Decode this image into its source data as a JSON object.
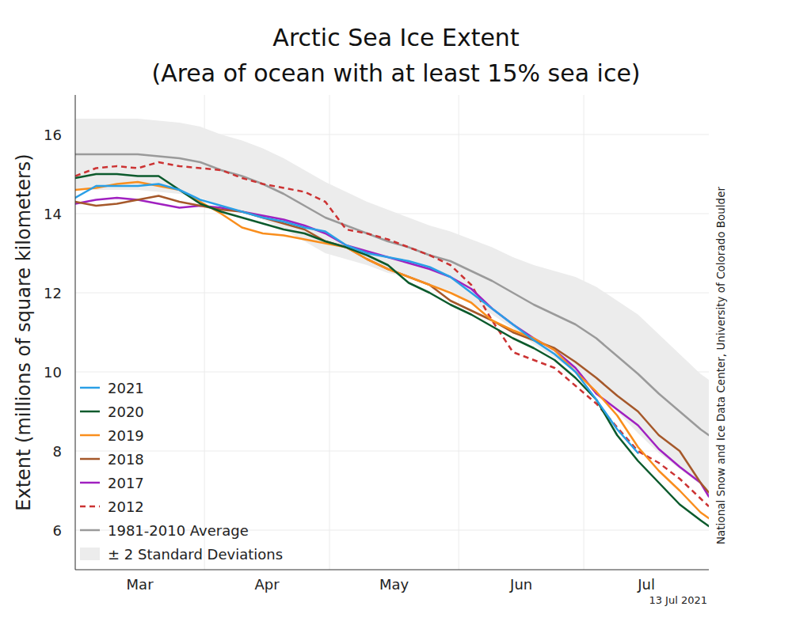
{
  "chart_data": {
    "type": "line",
    "title": "Arctic Sea Ice Extent",
    "subtitle": "(Area of ocean with at least 15% sea ice)",
    "y_label": "Extent (millions of square kilometers)",
    "source": "National Snow and Ice Data Center, University of Colorado Boulder",
    "note": "13 Jul 2021",
    "x": [
      0,
      5,
      10,
      15,
      20,
      25,
      30,
      35,
      40,
      45,
      50,
      55,
      60,
      65,
      70,
      75,
      80,
      85,
      90,
      95,
      100,
      105,
      110,
      115,
      120,
      125,
      130,
      135,
      140,
      145,
      150,
      152
    ],
    "xlim": [
      0,
      152
    ],
    "xticks": [
      {
        "value": 0,
        "label": "Mar"
      },
      {
        "value": 31,
        "label": "Apr"
      },
      {
        "value": 61,
        "label": "May"
      },
      {
        "value": 92,
        "label": "Jun"
      },
      {
        "value": 122,
        "label": "Jul"
      }
    ],
    "ylim": [
      5,
      17
    ],
    "yticks": [
      6,
      8,
      10,
      12,
      14,
      16
    ],
    "grid": true,
    "legend": "lower left",
    "series": [
      {
        "name": "2021",
        "color": "#2a9fe6",
        "line_style": "solid",
        "values": [
          14.4,
          14.7,
          14.7,
          14.7,
          14.75,
          14.6,
          14.35,
          14.2,
          14.05,
          13.9,
          13.8,
          13.65,
          13.55,
          13.2,
          13.0,
          12.9,
          12.8,
          12.65,
          12.4,
          12.0,
          11.6,
          11.2,
          10.8,
          10.45,
          10.0,
          9.3,
          8.55,
          7.95,
          null,
          null,
          null,
          null
        ]
      },
      {
        "name": "2020",
        "color": "#0b5a2c",
        "line_style": "solid",
        "values": [
          14.9,
          15.0,
          15.0,
          14.95,
          14.95,
          14.6,
          14.25,
          14.05,
          13.9,
          13.75,
          13.6,
          13.5,
          13.3,
          13.15,
          12.95,
          12.7,
          12.25,
          12.0,
          11.7,
          11.45,
          11.15,
          10.85,
          10.6,
          10.3,
          9.85,
          9.3,
          8.4,
          7.75,
          7.2,
          6.65,
          6.25,
          6.1
        ]
      },
      {
        "name": "2019",
        "color": "#f98e1d",
        "line_style": "solid",
        "values": [
          14.6,
          14.65,
          14.75,
          14.8,
          14.7,
          14.6,
          14.3,
          14.0,
          13.65,
          13.5,
          13.45,
          13.35,
          13.25,
          13.15,
          12.85,
          12.6,
          12.4,
          12.2,
          12.0,
          11.75,
          11.3,
          11.05,
          10.85,
          10.55,
          10.0,
          9.5,
          8.9,
          8.1,
          7.5,
          7.0,
          6.45,
          6.3
        ]
      },
      {
        "name": "2018",
        "color": "#a5582a",
        "line_style": "solid",
        "values": [
          14.3,
          14.2,
          14.25,
          14.35,
          14.45,
          14.3,
          14.2,
          14.1,
          14.05,
          13.9,
          13.75,
          13.6,
          13.3,
          13.15,
          12.85,
          12.6,
          12.4,
          12.2,
          11.8,
          11.55,
          11.3,
          11.0,
          10.8,
          10.6,
          10.25,
          9.85,
          9.4,
          9.0,
          8.4,
          8.0,
          7.2,
          6.95
        ]
      },
      {
        "name": "2017",
        "color": "#a020c0",
        "line_style": "solid",
        "values": [
          14.25,
          14.35,
          14.4,
          14.35,
          14.25,
          14.15,
          14.2,
          14.15,
          14.05,
          13.95,
          13.85,
          13.7,
          13.5,
          13.2,
          13.05,
          12.9,
          12.75,
          12.6,
          12.4,
          12.1,
          11.6,
          11.2,
          10.85,
          10.55,
          10.1,
          9.45,
          9.05,
          8.65,
          8.05,
          7.6,
          7.2,
          6.85
        ]
      },
      {
        "name": "2012",
        "color": "#cc3333",
        "line_style": "dashed",
        "values": [
          14.95,
          15.15,
          15.2,
          15.15,
          15.3,
          15.2,
          15.15,
          15.1,
          14.9,
          14.75,
          14.65,
          14.55,
          14.3,
          13.6,
          13.5,
          13.35,
          13.15,
          12.95,
          12.7,
          12.2,
          11.3,
          10.5,
          10.3,
          10.1,
          9.65,
          9.2,
          8.6,
          8.0,
          7.7,
          7.3,
          6.8,
          6.6
        ]
      },
      {
        "name": "1981-2010 Average",
        "color": "#9a9a9a",
        "line_style": "solid",
        "values": [
          15.5,
          15.5,
          15.5,
          15.5,
          15.45,
          15.4,
          15.3,
          15.1,
          14.95,
          14.75,
          14.5,
          14.2,
          13.9,
          13.7,
          13.5,
          13.3,
          13.15,
          12.95,
          12.8,
          12.55,
          12.3,
          12.0,
          11.7,
          11.45,
          11.2,
          10.85,
          10.4,
          9.95,
          9.45,
          9.0,
          8.55,
          8.4
        ]
      },
      {
        "name": "± 2 Standard Deviations",
        "type": "band",
        "color": "#ececec",
        "upper": [
          16.4,
          16.4,
          16.4,
          16.4,
          16.35,
          16.3,
          16.2,
          16.0,
          15.85,
          15.65,
          15.4,
          15.1,
          14.8,
          14.55,
          14.3,
          14.1,
          13.9,
          13.7,
          13.55,
          13.35,
          13.15,
          12.9,
          12.7,
          12.55,
          12.4,
          12.15,
          11.8,
          11.45,
          10.95,
          10.45,
          9.95,
          9.8
        ],
        "lower": [
          14.6,
          14.6,
          14.6,
          14.6,
          14.55,
          14.5,
          14.4,
          14.2,
          14.05,
          13.85,
          13.6,
          13.3,
          13.0,
          12.85,
          12.7,
          12.5,
          12.4,
          12.2,
          12.05,
          11.75,
          11.45,
          11.1,
          10.7,
          10.35,
          10.0,
          9.55,
          9.0,
          8.45,
          7.95,
          7.55,
          7.15,
          7.0
        ]
      }
    ]
  }
}
